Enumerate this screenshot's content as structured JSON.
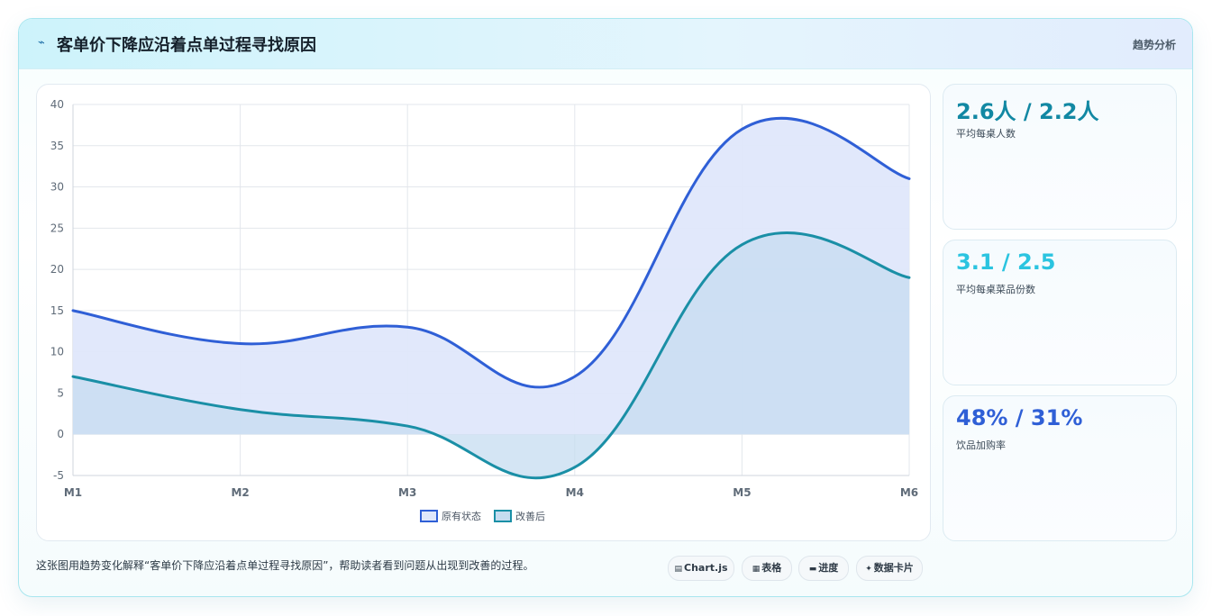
{
  "header": {
    "icon": "trend-icon",
    "title": "客单价下降应沿着点单过程寻找原因",
    "tag": "趋势分析"
  },
  "chart_data": {
    "type": "area",
    "categories": [
      "M1",
      "M2",
      "M3",
      "M4",
      "M5",
      "M6"
    ],
    "series": [
      {
        "name": "原有状态",
        "values": [
          15,
          11,
          13,
          7,
          37,
          31
        ],
        "color": "#2f5fd6",
        "fill": "#dfe7fb"
      },
      {
        "name": "改善后",
        "values": [
          7,
          3,
          1,
          -4,
          23,
          19
        ],
        "color": "#1a8fa6",
        "fill": "#c5dcf0"
      }
    ],
    "ylim": [
      -5,
      40
    ],
    "yticks": [
      -5,
      0,
      5,
      10,
      15,
      20,
      25,
      30,
      35,
      40
    ],
    "grid": true,
    "legend": "bottom-center",
    "smooth": true
  },
  "kpis": [
    {
      "value": "2.6人 / 2.2人",
      "label": "平均每桌人数",
      "color": "#1288a3"
    },
    {
      "value": "3.1 / 2.5",
      "label": "平均每桌菜品份数",
      "color": "#2bc4e0"
    },
    {
      "value": "48% / 31%",
      "label": "饮品加购率",
      "color": "#2f5fd6"
    }
  ],
  "footer": {
    "caption": "这张图用趋势变化解释“客单价下降应沿着点单过程寻找原因”，帮助读者看到问题从出现到改善的过程。",
    "chips": [
      {
        "icon": "chart-icon",
        "glyph": "▤",
        "label": "Chart.js"
      },
      {
        "icon": "table-icon",
        "glyph": "▦",
        "label": "表格"
      },
      {
        "icon": "progress-icon",
        "glyph": "▬",
        "label": "进度"
      },
      {
        "icon": "sparkle-icon",
        "glyph": "✦",
        "label": "数据卡片"
      }
    ]
  }
}
